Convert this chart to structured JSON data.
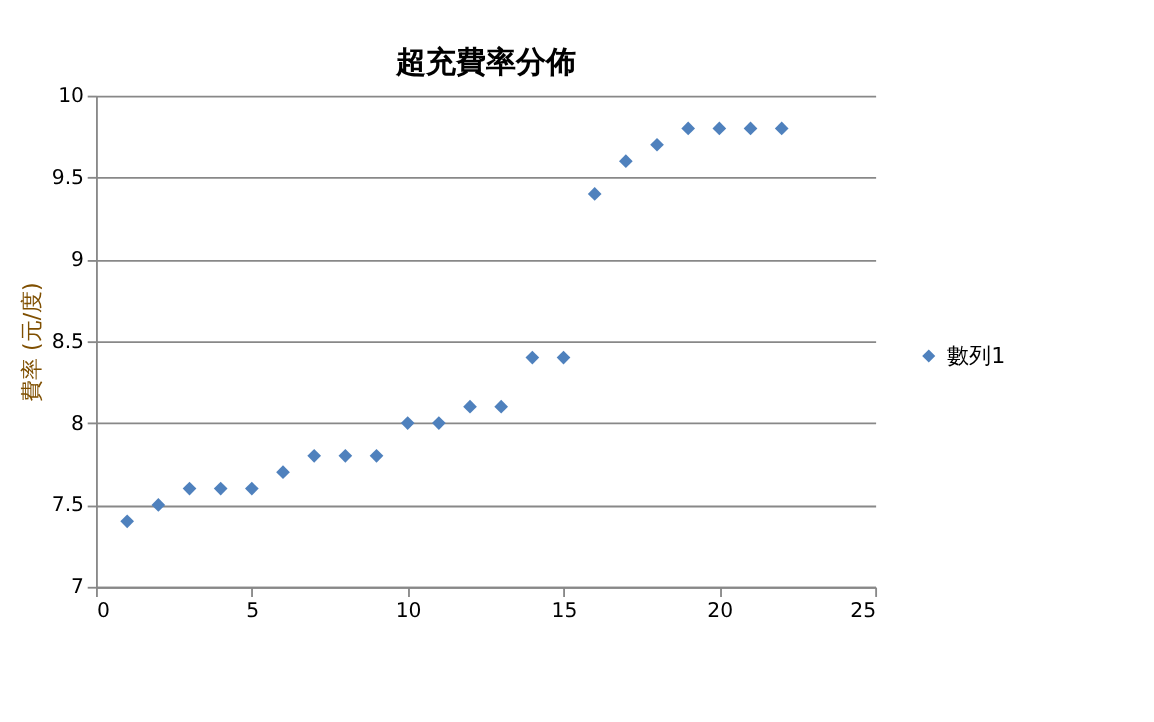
{
  "chart_data": {
    "type": "scatter",
    "title": "超充費率分佈",
    "ylabel": "費率 (元/度)",
    "x": [
      1,
      2,
      3,
      4,
      5,
      6,
      7,
      8,
      9,
      10,
      11,
      12,
      13,
      14,
      15,
      16,
      17,
      18,
      19,
      20,
      21,
      22
    ],
    "series": [
      {
        "name": "數列1",
        "color": "#4f81bd",
        "values": [
          7.4,
          7.5,
          7.6,
          7.6,
          7.6,
          7.7,
          7.8,
          7.8,
          7.8,
          8.0,
          8.0,
          8.1,
          8.1,
          8.4,
          8.4,
          9.4,
          9.6,
          9.7,
          9.8,
          9.8,
          9.8,
          9.8
        ]
      }
    ],
    "xlim": [
      0,
      25
    ],
    "xticks": [
      0,
      5,
      10,
      15,
      20,
      25
    ],
    "ylim": [
      7,
      10
    ],
    "yticks": [
      7,
      7.5,
      8,
      8.5,
      9,
      9.5,
      10
    ],
    "grid": "y",
    "legend": "right",
    "marker": "diamond"
  }
}
